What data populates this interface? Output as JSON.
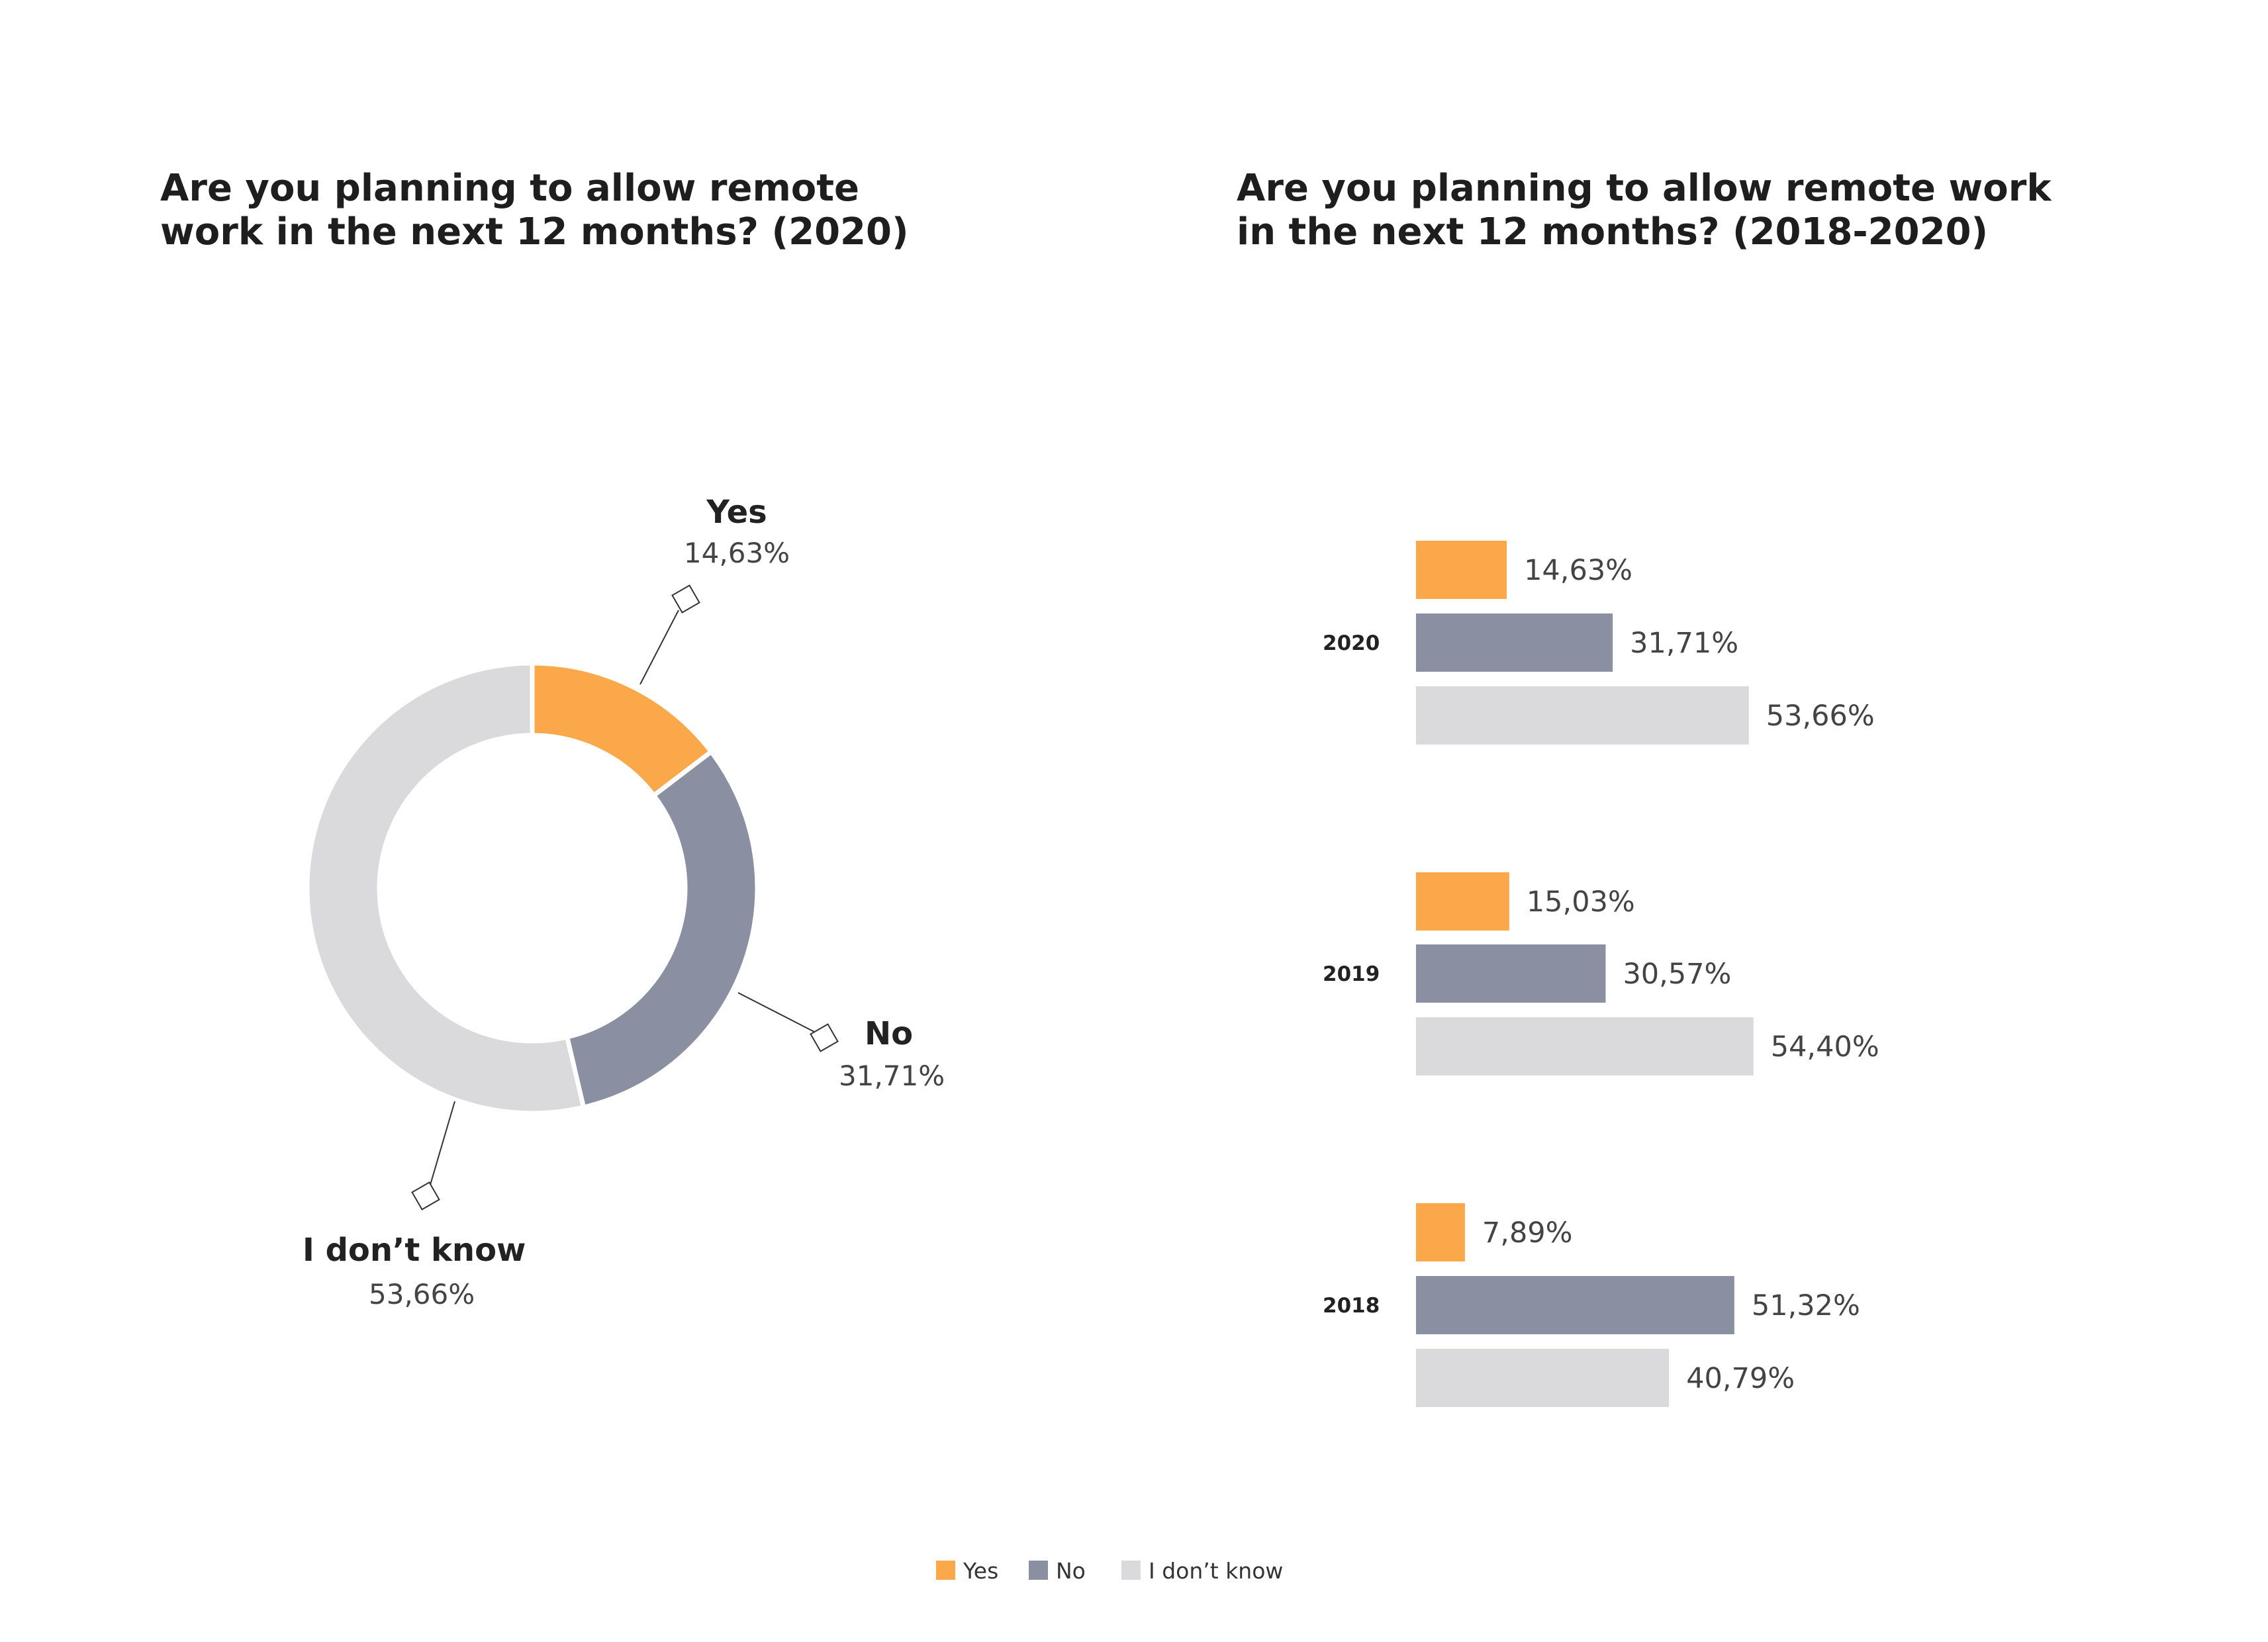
{
  "colors": {
    "Yes": "#FBA84B",
    "No": "#8A8FA2",
    "I don't know": "#DADADC"
  },
  "chart_data": [
    {
      "type": "pie",
      "variant": "donut",
      "title_lines": [
        "Are you planning to allow remote",
        "work in the next 12 months? (2020)"
      ],
      "categories": [
        "Yes",
        "No",
        "I don’t know"
      ],
      "values": [
        14.63,
        31.71,
        53.66
      ],
      "value_labels": [
        "14,63%",
        "31,71%",
        "53,66%"
      ]
    },
    {
      "type": "bar",
      "orientation": "horizontal",
      "title_lines": [
        "Are you planning to allow remote work",
        "in the next 12 months? (2018-2020)"
      ],
      "categories": [
        "2020",
        "2019",
        "2018"
      ],
      "series": [
        {
          "name": "Yes",
          "values": [
            14.63,
            15.03,
            7.89
          ],
          "labels": [
            "14,63%",
            "15,03%",
            "7,89%"
          ]
        },
        {
          "name": "No",
          "values": [
            31.71,
            30.57,
            51.32
          ],
          "labels": [
            "31,71%",
            "30,57%",
            "51,32%"
          ]
        },
        {
          "name": "I don’t know",
          "values": [
            53.66,
            54.4,
            40.79
          ],
          "labels": [
            "53,66%",
            "54,40%",
            "40,79%"
          ]
        }
      ],
      "xlim": [
        0,
        100
      ]
    }
  ],
  "legend": {
    "position": "bottom-center",
    "items": [
      "Yes",
      "No",
      "I don’t know"
    ]
  }
}
